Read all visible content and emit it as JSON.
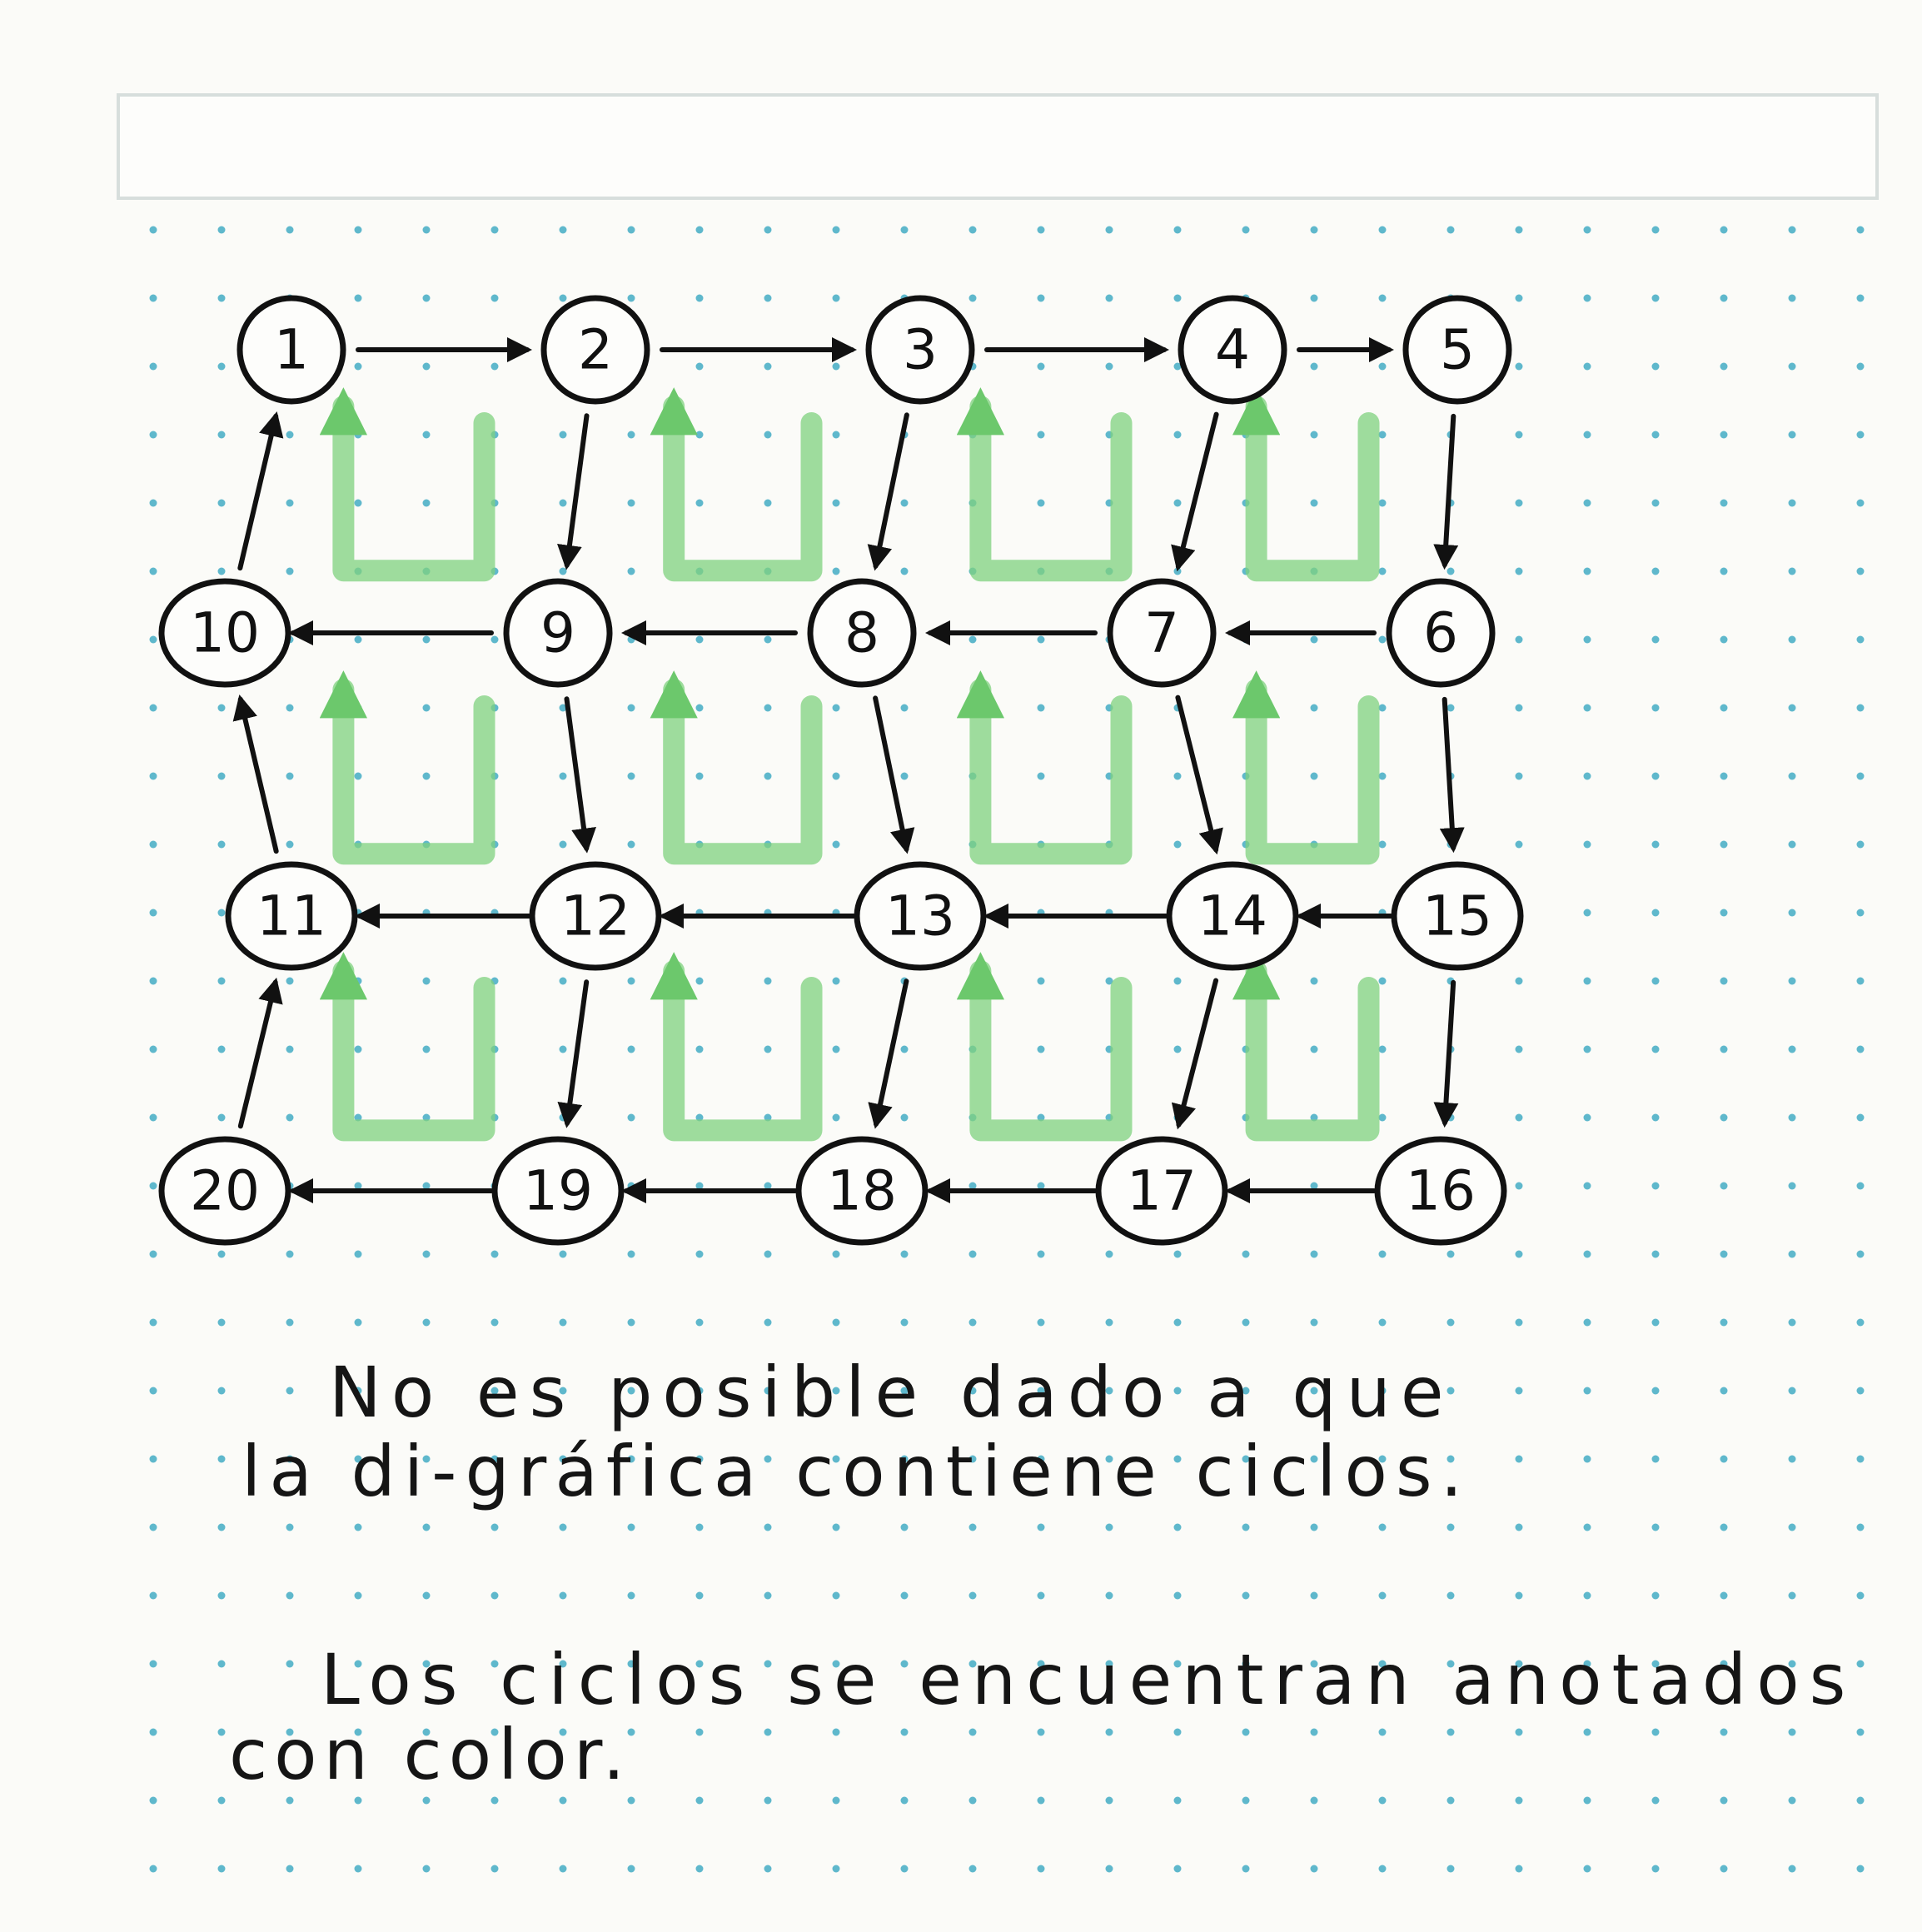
{
  "colors": {
    "paper": "#fbfbf8",
    "ink": "#111111",
    "cycle_highlight": "#7fd27f",
    "dot_grid": "#5fb8cc"
  },
  "graph": {
    "nodes": [
      "1",
      "2",
      "3",
      "4",
      "5",
      "6",
      "7",
      "8",
      "9",
      "10",
      "11",
      "12",
      "13",
      "14",
      "15",
      "16",
      "17",
      "18",
      "19",
      "20"
    ],
    "edges": [
      [
        "1",
        "2"
      ],
      [
        "2",
        "3"
      ],
      [
        "3",
        "4"
      ],
      [
        "4",
        "5"
      ],
      [
        "2",
        "9"
      ],
      [
        "3",
        "8"
      ],
      [
        "4",
        "7"
      ],
      [
        "5",
        "6"
      ],
      [
        "6",
        "7"
      ],
      [
        "7",
        "8"
      ],
      [
        "8",
        "9"
      ],
      [
        "9",
        "10"
      ],
      [
        "10",
        "1"
      ],
      [
        "9",
        "12"
      ],
      [
        "8",
        "13"
      ],
      [
        "7",
        "14"
      ],
      [
        "6",
        "15"
      ],
      [
        "15",
        "14"
      ],
      [
        "14",
        "13"
      ],
      [
        "13",
        "12"
      ],
      [
        "12",
        "11"
      ],
      [
        "11",
        "10"
      ],
      [
        "12",
        "19"
      ],
      [
        "13",
        "18"
      ],
      [
        "14",
        "17"
      ],
      [
        "15",
        "16"
      ],
      [
        "16",
        "17"
      ],
      [
        "17",
        "18"
      ],
      [
        "18",
        "19"
      ],
      [
        "19",
        "20"
      ],
      [
        "20",
        "11"
      ]
    ],
    "highlighted_cycles": [
      [
        "1",
        "2",
        "9",
        "10"
      ],
      [
        "2",
        "3",
        "8",
        "9"
      ],
      [
        "3",
        "4",
        "7",
        "8"
      ],
      [
        "4",
        "5",
        "6",
        "7"
      ],
      [
        "10",
        "9",
        "12",
        "11"
      ],
      [
        "9",
        "8",
        "13",
        "12"
      ],
      [
        "8",
        "7",
        "14",
        "13"
      ],
      [
        "7",
        "6",
        "15",
        "14"
      ],
      [
        "11",
        "12",
        "19",
        "20"
      ],
      [
        "12",
        "13",
        "18",
        "19"
      ],
      [
        "13",
        "14",
        "17",
        "18"
      ],
      [
        "14",
        "15",
        "16",
        "17"
      ]
    ]
  },
  "notes": {
    "note1_line1": "No es posible dado a que",
    "note1_line2": "la di-gráfica contiene ciclos.",
    "note2_line1": "Los ciclos se encuentran anotados",
    "note2_line2": "con color."
  }
}
